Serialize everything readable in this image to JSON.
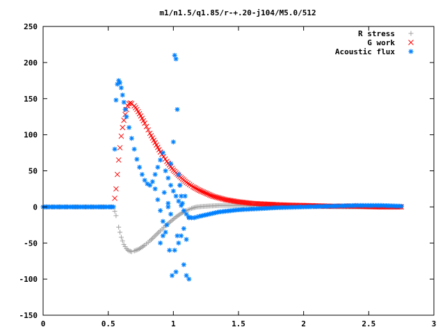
{
  "chart_data": {
    "type": "scatter",
    "title": "m1/n1.5/q1.85/r-+.20-j104/M5.0/512",
    "xlabel": "",
    "ylabel": "",
    "xlim": [
      0,
      3
    ],
    "ylim": [
      -150,
      250
    ],
    "xticks": [
      "0",
      "0.5",
      "1",
      "1.5",
      "2",
      "2.5",
      "3"
    ],
    "yticks": [
      "-150",
      "-100",
      "-50",
      "0",
      "50",
      "100",
      "150",
      "200",
      "250"
    ],
    "grid": false,
    "legend": "top-right",
    "series": [
      {
        "name": "R stress",
        "marker": "plus",
        "color": "#a0a0a0",
        "x": [
          0.0,
          0.1,
          0.2,
          0.3,
          0.4,
          0.5,
          0.54,
          0.56,
          0.58,
          0.6,
          0.62,
          0.64,
          0.66,
          0.68,
          0.7,
          0.74,
          0.78,
          0.82,
          0.86,
          0.9,
          0.94,
          0.98,
          1.02,
          1.06,
          1.1,
          1.14,
          1.18,
          1.25,
          1.35,
          1.5,
          1.7,
          2.0,
          2.3,
          2.6,
          2.75
        ],
        "y": [
          0,
          0,
          0,
          0,
          0,
          0,
          0,
          -12,
          -28,
          -42,
          -52,
          -58,
          -61,
          -62,
          -61,
          -58,
          -53,
          -47,
          -40,
          -33,
          -26,
          -20,
          -14,
          -9,
          -5,
          -2,
          0,
          1,
          2,
          2,
          1,
          1,
          0,
          0,
          0
        ]
      },
      {
        "name": "G work",
        "marker": "cross",
        "color": "#ff0000",
        "x": [
          0.55,
          0.56,
          0.57,
          0.58,
          0.59,
          0.6,
          0.61,
          0.62,
          0.63,
          0.64,
          0.65,
          0.66,
          0.67,
          0.68,
          0.7,
          0.72,
          0.75,
          0.78,
          0.82,
          0.86,
          0.9,
          0.95,
          1.0,
          1.05,
          1.1,
          1.15,
          1.2,
          1.3,
          1.4,
          1.5,
          1.6,
          1.7,
          1.8,
          2.0,
          2.2,
          2.4,
          2.6,
          2.75
        ],
        "y": [
          12,
          25,
          45,
          65,
          82,
          98,
          110,
          120,
          128,
          135,
          140,
          143,
          144,
          143,
          140,
          135,
          126,
          116,
          102,
          89,
          76,
          63,
          51,
          42,
          34,
          28,
          23,
          15,
          10,
          7,
          5,
          4,
          3,
          2,
          1,
          1,
          0,
          0
        ]
      },
      {
        "name": "Acoustic flux",
        "marker": "star",
        "color": "#0080ff",
        "x": [
          0.0,
          0.1,
          0.2,
          0.3,
          0.4,
          0.5,
          0.54,
          0.55,
          0.56,
          0.57,
          0.58,
          0.59,
          0.6,
          0.61,
          0.62,
          0.63,
          0.64,
          0.66,
          0.68,
          0.7,
          0.72,
          0.74,
          0.76,
          0.78,
          0.8,
          0.82,
          0.84,
          0.86,
          0.88,
          0.9,
          0.92,
          0.94,
          0.96,
          0.98,
          1.0,
          1.02,
          1.04,
          1.06,
          1.08,
          1.1,
          1.12,
          1.14,
          1.16,
          1.18,
          1.2,
          1.25,
          1.3,
          1.35,
          1.4,
          1.5,
          1.6,
          1.7,
          1.8,
          2.0,
          2.2,
          2.4,
          2.6,
          2.75,
          0.86,
          0.88,
          0.9,
          0.92,
          0.94,
          0.96,
          0.98,
          1.0,
          1.01,
          1.02,
          1.03,
          1.04,
          1.05,
          1.06,
          1.08,
          1.1,
          1.12,
          0.9,
          0.92,
          0.95,
          0.97,
          0.99,
          1.02,
          1.04,
          1.06,
          1.08,
          1.1,
          1.12,
          0.93,
          0.96,
          0.98,
          1.01,
          1.03,
          1.05,
          1.07,
          1.09
        ],
        "y": [
          0,
          0,
          0,
          0,
          0,
          0,
          0,
          80,
          148,
          170,
          175,
          172,
          165,
          155,
          145,
          135,
          125,
          110,
          95,
          80,
          66,
          55,
          45,
          37,
          32,
          30,
          35,
          45,
          55,
          65,
          75,
          50,
          40,
          30,
          22,
          15,
          8,
          2,
          -5,
          -10,
          -14,
          -15,
          -15,
          -14,
          -13,
          -11,
          -9,
          -7,
          -6,
          -4,
          -3,
          -2,
          -1,
          0,
          1,
          2,
          2,
          1,
          25,
          10,
          -5,
          -20,
          -35,
          5,
          60,
          90,
          210,
          205,
          135,
          45,
          30,
          15,
          -30,
          -45,
          -15,
          -50,
          -40,
          -25,
          -60,
          -95,
          -90,
          -50,
          -40,
          -80,
          -95,
          -100,
          20,
          0,
          -10,
          -60,
          -40,
          30,
          5,
          15
        ]
      }
    ]
  }
}
